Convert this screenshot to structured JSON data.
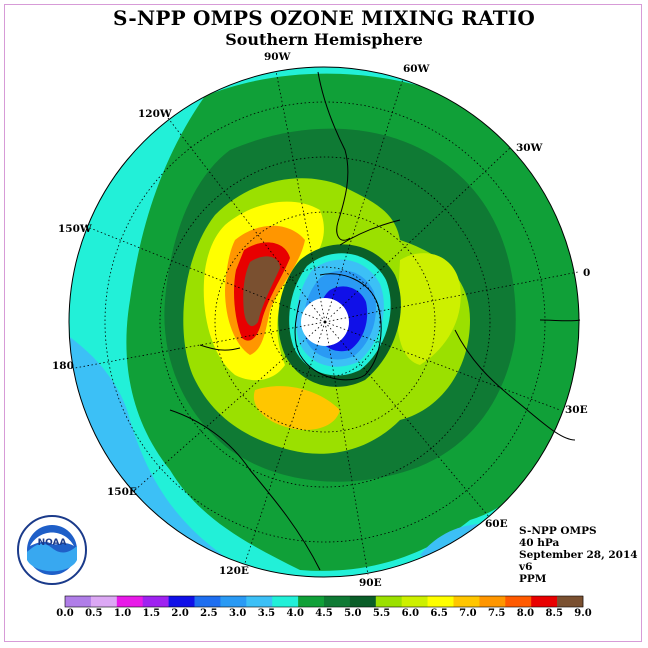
{
  "title": "S-NPP OMPS OZONE MIXING RATIO",
  "subtitle": "Southern Hemisphere",
  "longitude_labels": {
    "w90": "90W",
    "w60": "60W",
    "w30": "30W",
    "e0": "0",
    "e30": "30E",
    "e60": "60E",
    "e90": "90E",
    "e120": "120E",
    "e150": "150E",
    "e180": "180",
    "w150": "150W",
    "w120": "120W"
  },
  "info": {
    "instrument": "S-NPP OMPS",
    "level": "40 hPa",
    "date": "September 28, 2014",
    "version": "v6",
    "units": "PPM"
  },
  "logo_text": "NOAA",
  "colorbar": {
    "ticks": [
      "0.0",
      "0.5",
      "1.0",
      "1.5",
      "2.0",
      "2.5",
      "3.0",
      "3.5",
      "4.0",
      "4.5",
      "5.0",
      "5.5",
      "6.0",
      "6.5",
      "7.0",
      "7.5",
      "8.0",
      "8.5",
      "9.0"
    ],
    "colors": [
      "#b07ee8",
      "#dca8f4",
      "#e81ae8",
      "#9f22f0",
      "#1010e8",
      "#1e6ef0",
      "#2a9af4",
      "#3cc0f6",
      "#22f0d8",
      "#10a038",
      "#0f7a34",
      "#0a5e28",
      "#9be000",
      "#cdf000",
      "#ffff00",
      "#ffc600",
      "#ff9600",
      "#ff5a00",
      "#e80000",
      "#7a5030"
    ]
  }
}
